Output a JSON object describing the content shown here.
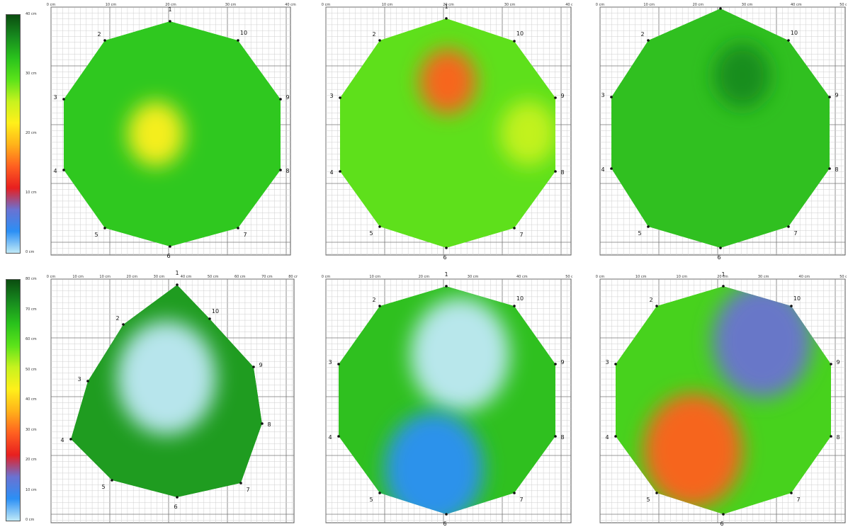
{
  "colors": {
    "scale_top": [
      "#0b4d10",
      "#178a1e",
      "#29c21c",
      "#5be31a",
      "#c7f21e",
      "#fff01a",
      "#ffb21a",
      "#ff6020",
      "#e81f1f",
      "#6a72d2",
      "#2b8ff5",
      "#bfe9f7"
    ],
    "scale_bottom": [
      "#0b4d10",
      "#178a1e",
      "#29c21c",
      "#5be31a",
      "#c7f21e",
      "#fff01a",
      "#ffb21a",
      "#ff6020",
      "#e81f1f",
      "#6a72d2",
      "#2b8ff5",
      "#bfe9f7"
    ]
  },
  "legend_top": {
    "ticks": [
      "40 cm",
      "30 cm",
      "20 cm",
      "10 cm",
      "0 cm"
    ]
  },
  "legend_bottom": {
    "ticks": [
      "80 cm",
      "70 cm",
      "60 cm",
      "50 cm",
      "40 cm",
      "30 cm",
      "20 cm",
      "10 cm",
      "0 cm"
    ]
  },
  "chart_data": [
    {
      "type": "heatmap",
      "x_ticks": [
        "0 cm",
        "10 cm",
        "20 cm",
        "30 cm",
        "40 cm"
      ],
      "points": [
        "1",
        "2",
        "3",
        "4",
        "5",
        "6",
        "7",
        "8",
        "9",
        "10"
      ],
      "hotspots": [
        {
          "x": 17,
          "y": 20,
          "depth": 22
        }
      ]
    },
    {
      "type": "heatmap",
      "x_ticks": [
        "0 cm",
        "10 cm",
        "20 cm",
        "30 cm",
        "40 cm"
      ],
      "points": [
        "1",
        "2",
        "3",
        "4",
        "5",
        "6",
        "7",
        "8",
        "9",
        "10"
      ],
      "hotspots": [
        {
          "x": 20,
          "y": 11,
          "depth": 14
        },
        {
          "x": 35,
          "y": 20,
          "depth": 24
        }
      ]
    },
    {
      "type": "heatmap",
      "x_ticks": [
        "0 cm",
        "10 cm",
        "20 cm",
        "30 cm",
        "40 cm",
        "50 cm"
      ],
      "points": [
        "1",
        "2",
        "3",
        "4",
        "5",
        "6",
        "7",
        "8",
        "9",
        "10"
      ],
      "hotspots": [
        {
          "x": 30,
          "y": 14,
          "depth": 38
        }
      ]
    },
    {
      "type": "heatmap",
      "x_ticks": [
        "0 cm",
        "10 cm",
        "10 cm",
        "20 cm",
        "30 cm",
        "40 cm",
        "50 cm",
        "60 cm",
        "70 cm",
        "80 cm"
      ],
      "points": [
        "1",
        "2",
        "3",
        "4",
        "5",
        "6",
        "7",
        "8",
        "9",
        "10"
      ],
      "hotspots": [
        {
          "x": 40,
          "y": 35,
          "depth": 3
        }
      ]
    },
    {
      "type": "heatmap",
      "x_ticks": [
        "0 cm",
        "10 cm",
        "20 cm",
        "30 cm",
        "40 cm",
        "50 cm"
      ],
      "points": [
        "1",
        "2",
        "3",
        "4",
        "5",
        "6",
        "7",
        "8",
        "9",
        "10"
      ],
      "hotspots": [
        {
          "x": 28,
          "y": 15,
          "depth": 3
        },
        {
          "x": 22,
          "y": 40,
          "depth": 10
        }
      ]
    },
    {
      "type": "heatmap",
      "x_ticks": [
        "0 cm",
        "10 cm",
        "10 cm",
        "20 cm",
        "30 cm",
        "40 cm",
        "50 cm"
      ],
      "points": [
        "1",
        "2",
        "3",
        "4",
        "5",
        "6",
        "7",
        "8",
        "9",
        "10"
      ],
      "hotspots": [
        {
          "x": 34,
          "y": 12,
          "depth": 14
        },
        {
          "x": 18,
          "y": 36,
          "depth": 27
        }
      ]
    }
  ]
}
